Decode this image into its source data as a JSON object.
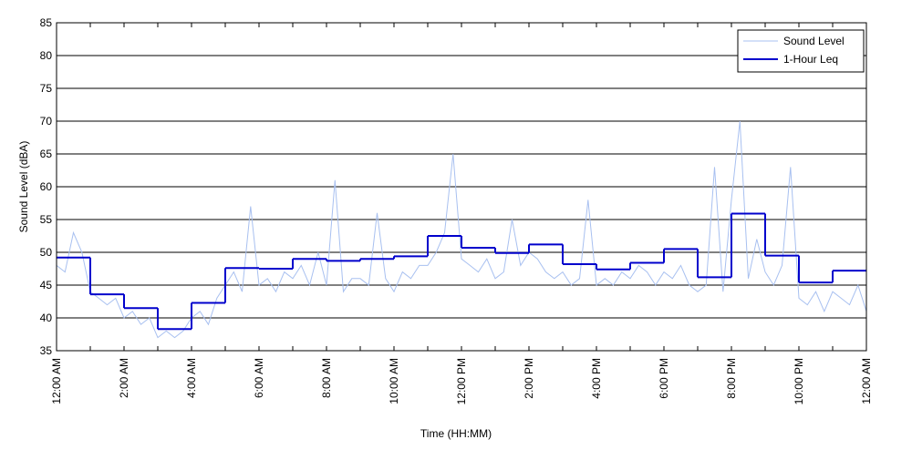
{
  "chart_data": {
    "type": "line",
    "xlabel": "Time (HH:MM)",
    "ylabel": "Sound Level (dBA)",
    "xlim": [
      0,
      24
    ],
    "ylim": [
      35,
      85
    ],
    "yticks": [
      35,
      40,
      45,
      50,
      55,
      60,
      65,
      70,
      75,
      80,
      85
    ],
    "xticks": [
      {
        "value": 0,
        "label": "12:00 AM"
      },
      {
        "value": 2,
        "label": "2:00 AM"
      },
      {
        "value": 4,
        "label": "4:00 AM"
      },
      {
        "value": 6,
        "label": "6:00 AM"
      },
      {
        "value": 8,
        "label": "8:00 AM"
      },
      {
        "value": 10,
        "label": "10:00 AM"
      },
      {
        "value": 12,
        "label": "12:00 PM"
      },
      {
        "value": 14,
        "label": "2:00 PM"
      },
      {
        "value": 16,
        "label": "4:00 PM"
      },
      {
        "value": 18,
        "label": "6:00 PM"
      },
      {
        "value": 20,
        "label": "8:00 PM"
      },
      {
        "value": 22,
        "label": "10:00 PM"
      },
      {
        "value": 24,
        "label": "12:00 AM"
      }
    ],
    "xminorticks": [
      1,
      3,
      5,
      7,
      9,
      11,
      13,
      15,
      17,
      19,
      21,
      23
    ],
    "grid": true,
    "legend": "upper right",
    "series": [
      {
        "name": "Sound Level",
        "color": "#a8c0f0",
        "drawstyle": "default",
        "x": [
          0,
          0.25,
          0.5,
          0.75,
          1,
          1.25,
          1.5,
          1.75,
          2,
          2.25,
          2.5,
          2.75,
          3,
          3.25,
          3.5,
          3.75,
          4,
          4.25,
          4.5,
          4.75,
          5,
          5.25,
          5.5,
          5.75,
          6,
          6.25,
          6.5,
          6.75,
          7,
          7.25,
          7.5,
          7.75,
          8,
          8.25,
          8.5,
          8.75,
          9,
          9.25,
          9.5,
          9.75,
          10,
          10.25,
          10.5,
          10.75,
          11,
          11.25,
          11.5,
          11.75,
          12,
          12.25,
          12.5,
          12.75,
          13,
          13.25,
          13.5,
          13.75,
          14,
          14.25,
          14.5,
          14.75,
          15,
          15.25,
          15.5,
          15.75,
          16,
          16.25,
          16.5,
          16.75,
          17,
          17.25,
          17.5,
          17.75,
          18,
          18.25,
          18.5,
          18.75,
          19,
          19.25,
          19.5,
          19.75,
          20,
          20.25,
          20.5,
          20.75,
          21,
          21.25,
          21.5,
          21.75,
          22,
          22.25,
          22.5,
          22.75,
          23,
          23.25,
          23.5,
          23.75,
          24
        ],
        "values": [
          48,
          47,
          53,
          50,
          44,
          43,
          42,
          43,
          40,
          41,
          39,
          40,
          37,
          38,
          37,
          38,
          40,
          41,
          39,
          43,
          45,
          47,
          44,
          57,
          45,
          46,
          44,
          47,
          46,
          48,
          45,
          50,
          45,
          61,
          44,
          46,
          46,
          45,
          56,
          46,
          44,
          47,
          46,
          48,
          48,
          50,
          53,
          65,
          49,
          48,
          47,
          49,
          46,
          47,
          55,
          48,
          50,
          49,
          47,
          46,
          47,
          45,
          46,
          58,
          45,
          46,
          45,
          47,
          46,
          48,
          47,
          45,
          47,
          46,
          48,
          45,
          44,
          45,
          63,
          44,
          58,
          70,
          46,
          52,
          47,
          45,
          48,
          63,
          43,
          42,
          44,
          41,
          44,
          43,
          42,
          45,
          41
        ]
      },
      {
        "name": "1-Hour Leq",
        "color": "#0000cc",
        "drawstyle": "steps-post",
        "x": [
          0,
          1,
          2,
          3,
          4,
          5,
          6,
          7,
          8,
          9,
          10,
          11,
          12,
          13,
          14,
          15,
          16,
          17,
          18,
          19,
          20,
          21,
          22,
          23
        ],
        "values": [
          49.2,
          43.6,
          41.5,
          38.3,
          42.3,
          47.6,
          47.5,
          49.0,
          48.7,
          49.0,
          49.4,
          52.5,
          50.7,
          49.9,
          51.2,
          48.2,
          47.4,
          48.4,
          50.5,
          46.2,
          55.9,
          49.5,
          45.4,
          47.2
        ]
      }
    ]
  }
}
